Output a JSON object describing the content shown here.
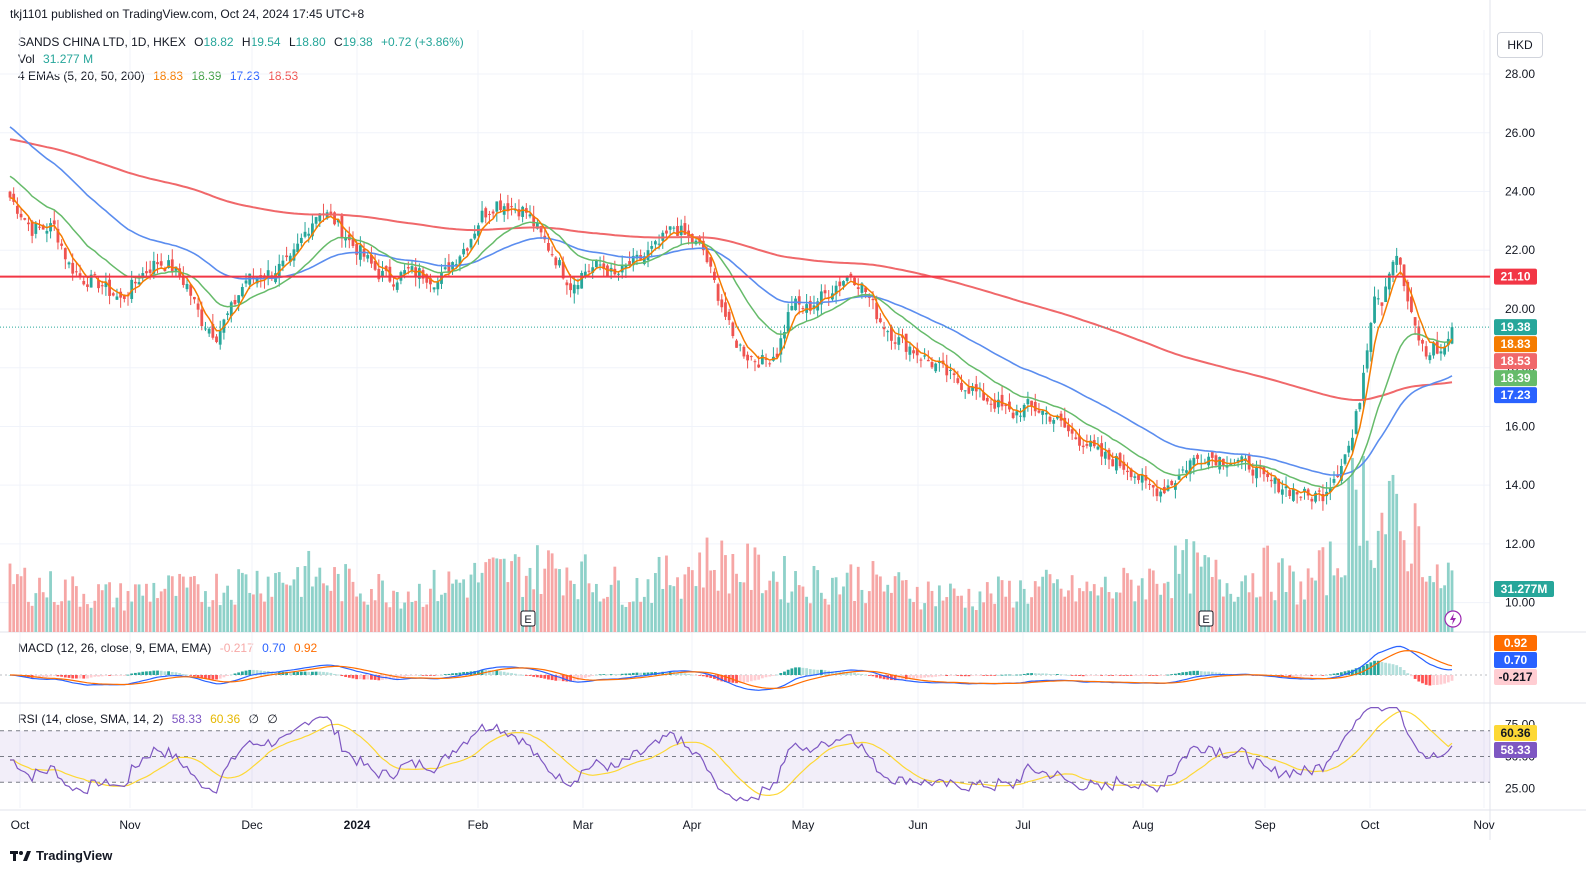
{
  "header": {
    "published": "tkj1101 published on TradingView.com, Oct 24, 2024 17:45 UTC+8"
  },
  "symbol": {
    "name": "SANDS CHINA LTD, 1D, HKEX",
    "o_label": "O",
    "o": "18.82",
    "h_label": "H",
    "h": "19.54",
    "l_label": "L",
    "l": "18.80",
    "c_label": "C",
    "c": "19.38",
    "change": "+0.72 (+3.86%)"
  },
  "vol_legend": {
    "label": "Vol",
    "value": "31.277 M"
  },
  "ema_legend": {
    "label": "4 EMAs (5, 20, 50, 200)",
    "v1": "18.83",
    "v2": "18.39",
    "v3": "17.23",
    "v4": "18.53"
  },
  "currency": "HKD",
  "macd_legend": {
    "label": "MACD (12, 26, close, 9, EMA, EMA)",
    "hist": "-0.217",
    "macd": "0.70",
    "signal": "0.92"
  },
  "rsi_legend": {
    "label": "RSI (14, close, SMA, 14, 2)",
    "rsi": "58.33",
    "sma": "60.36",
    "u1": "∅",
    "u2": "∅"
  },
  "colors": {
    "up": "#26a69a",
    "down": "#ef5350",
    "ema5": "#f57c00",
    "ema20": "#66bb6a",
    "ema50": "#5b8def",
    "ema200": "#f0686a",
    "macd": "#2962ff",
    "signal": "#ff6d00",
    "rsi": "#7e57c2",
    "rsiSma": "#fdd835",
    "hline": "#f23645"
  },
  "footer": {
    "brand": "TradingView"
  },
  "chart_data": {
    "type": "candlestick",
    "title": "SANDS CHINA LTD, 1D, HKEX",
    "currency": "HKD",
    "y_ticks": [
      "28.00",
      "26.00",
      "24.00",
      "22.00",
      "20.00",
      "18.00",
      "16.00",
      "14.00",
      "12.00",
      "10.00"
    ],
    "ylim": [
      9.0,
      29.5
    ],
    "x_labels": [
      "Oct",
      "Nov",
      "Dec",
      "2024",
      "Feb",
      "Mar",
      "Apr",
      "May",
      "Jun",
      "Jul",
      "Aug",
      "Sep",
      "Oct",
      "Nov"
    ],
    "horizontal_line": {
      "value": 21.1,
      "label": "21.10"
    },
    "last_close": 19.38,
    "price_labels": [
      {
        "value": "21.10",
        "key": "hline"
      },
      {
        "value": "19.38",
        "key": "up"
      },
      {
        "value": "18.83",
        "key": "ema5"
      },
      {
        "value": "18.53",
        "key": "ema200"
      },
      {
        "value": "18.39",
        "key": "ema20"
      },
      {
        "value": "17.23",
        "key": "ema50"
      }
    ],
    "volume_label": "31.277M",
    "earnings_markers": [
      {
        "month_position": "Feb",
        "label": "E"
      },
      {
        "month_position": "Aug",
        "label": "E"
      }
    ],
    "close_anchors": [
      [
        0,
        23.8
      ],
      [
        6,
        22.7
      ],
      [
        12,
        22.8
      ],
      [
        16,
        21.5
      ],
      [
        20,
        21.0
      ],
      [
        24,
        20.9
      ],
      [
        30,
        20.3
      ],
      [
        36,
        21.2
      ],
      [
        40,
        21.6
      ],
      [
        44,
        21.4
      ],
      [
        48,
        20.8
      ],
      [
        52,
        19.6
      ],
      [
        56,
        19.1
      ],
      [
        60,
        20.0
      ],
      [
        64,
        21.0
      ],
      [
        70,
        21.2
      ],
      [
        76,
        21.6
      ],
      [
        80,
        22.6
      ],
      [
        84,
        23.4
      ],
      [
        88,
        23.0
      ],
      [
        92,
        22.3
      ],
      [
        96,
        21.8
      ],
      [
        100,
        21.2
      ],
      [
        104,
        21.0
      ],
      [
        108,
        21.3
      ],
      [
        112,
        21.2
      ],
      [
        116,
        20.9
      ],
      [
        120,
        21.6
      ],
      [
        124,
        22.2
      ],
      [
        128,
        23.2
      ],
      [
        132,
        23.6
      ],
      [
        136,
        23.5
      ],
      [
        140,
        23.3
      ],
      [
        144,
        22.5
      ],
      [
        148,
        21.7
      ],
      [
        152,
        20.8
      ],
      [
        156,
        21.3
      ],
      [
        160,
        21.5
      ],
      [
        164,
        21.1
      ],
      [
        168,
        21.5
      ],
      [
        172,
        21.8
      ],
      [
        176,
        22.2
      ],
      [
        180,
        22.8
      ],
      [
        184,
        22.4
      ],
      [
        188,
        22.0
      ],
      [
        192,
        20.5
      ],
      [
        196,
        19.0
      ],
      [
        200,
        18.4
      ],
      [
        204,
        18.2
      ],
      [
        208,
        18.5
      ],
      [
        212,
        20.2
      ],
      [
        216,
        20.0
      ],
      [
        220,
        20.4
      ],
      [
        224,
        20.8
      ],
      [
        228,
        21.2
      ],
      [
        232,
        20.6
      ],
      [
        236,
        19.6
      ],
      [
        240,
        19.0
      ],
      [
        244,
        18.7
      ],
      [
        248,
        18.3
      ],
      [
        252,
        18.0
      ],
      [
        256,
        17.6
      ],
      [
        260,
        17.3
      ],
      [
        264,
        17.0
      ],
      [
        268,
        16.7
      ],
      [
        272,
        16.4
      ],
      [
        276,
        16.7
      ],
      [
        280,
        16.5
      ],
      [
        284,
        16.2
      ],
      [
        288,
        15.7
      ],
      [
        292,
        15.4
      ],
      [
        296,
        15.0
      ],
      [
        300,
        14.8
      ],
      [
        304,
        14.5
      ],
      [
        308,
        14.0
      ],
      [
        312,
        13.8
      ],
      [
        316,
        14.2
      ],
      [
        320,
        14.8
      ],
      [
        324,
        15.0
      ],
      [
        328,
        14.9
      ],
      [
        332,
        14.8
      ],
      [
        336,
        14.7
      ],
      [
        340,
        14.2
      ],
      [
        344,
        14.0
      ],
      [
        348,
        13.8
      ],
      [
        352,
        13.6
      ],
      [
        356,
        13.7
      ],
      [
        360,
        14.5
      ],
      [
        364,
        15.6
      ],
      [
        366,
        17.0
      ],
      [
        368,
        18.8
      ],
      [
        370,
        20.6
      ],
      [
        372,
        20.3
      ],
      [
        374,
        21.4
      ],
      [
        376,
        21.9
      ],
      [
        378,
        20.8
      ],
      [
        380,
        19.7
      ],
      [
        382,
        19.0
      ],
      [
        384,
        18.4
      ],
      [
        386,
        18.7
      ],
      [
        388,
        18.5
      ],
      [
        390,
        19.0
      ],
      [
        391,
        19.38
      ]
    ],
    "volume_anchors": [
      [
        0,
        12
      ],
      [
        10,
        10
      ],
      [
        20,
        9
      ],
      [
        30,
        8
      ],
      [
        40,
        10
      ],
      [
        50,
        9
      ],
      [
        60,
        11
      ],
      [
        70,
        12
      ],
      [
        80,
        13
      ],
      [
        90,
        11
      ],
      [
        100,
        10
      ],
      [
        110,
        9
      ],
      [
        120,
        11
      ],
      [
        130,
        13
      ],
      [
        140,
        14
      ],
      [
        150,
        15
      ],
      [
        160,
        11
      ],
      [
        170,
        10
      ],
      [
        180,
        13
      ],
      [
        190,
        16
      ],
      [
        200,
        14
      ],
      [
        210,
        12
      ],
      [
        220,
        11
      ],
      [
        230,
        12
      ],
      [
        240,
        10
      ],
      [
        250,
        9
      ],
      [
        260,
        8
      ],
      [
        270,
        9
      ],
      [
        280,
        10
      ],
      [
        290,
        9
      ],
      [
        300,
        10
      ],
      [
        310,
        12
      ],
      [
        320,
        15
      ],
      [
        330,
        11
      ],
      [
        340,
        14
      ],
      [
        350,
        10
      ],
      [
        360,
        16
      ],
      [
        366,
        35
      ],
      [
        370,
        22
      ],
      [
        374,
        27
      ],
      [
        378,
        20
      ],
      [
        382,
        24
      ],
      [
        386,
        10
      ],
      [
        391,
        14
      ]
    ],
    "macd_hist": {
      "last": -0.217
    },
    "macd_line": {
      "last": 0.7
    },
    "signal_line": {
      "last": 0.92
    },
    "rsi": {
      "last": 58.33,
      "sma_last": 60.36,
      "ticks": [
        "75.00",
        "50.00",
        "25.00"
      ],
      "band": [
        30,
        70
      ]
    }
  }
}
